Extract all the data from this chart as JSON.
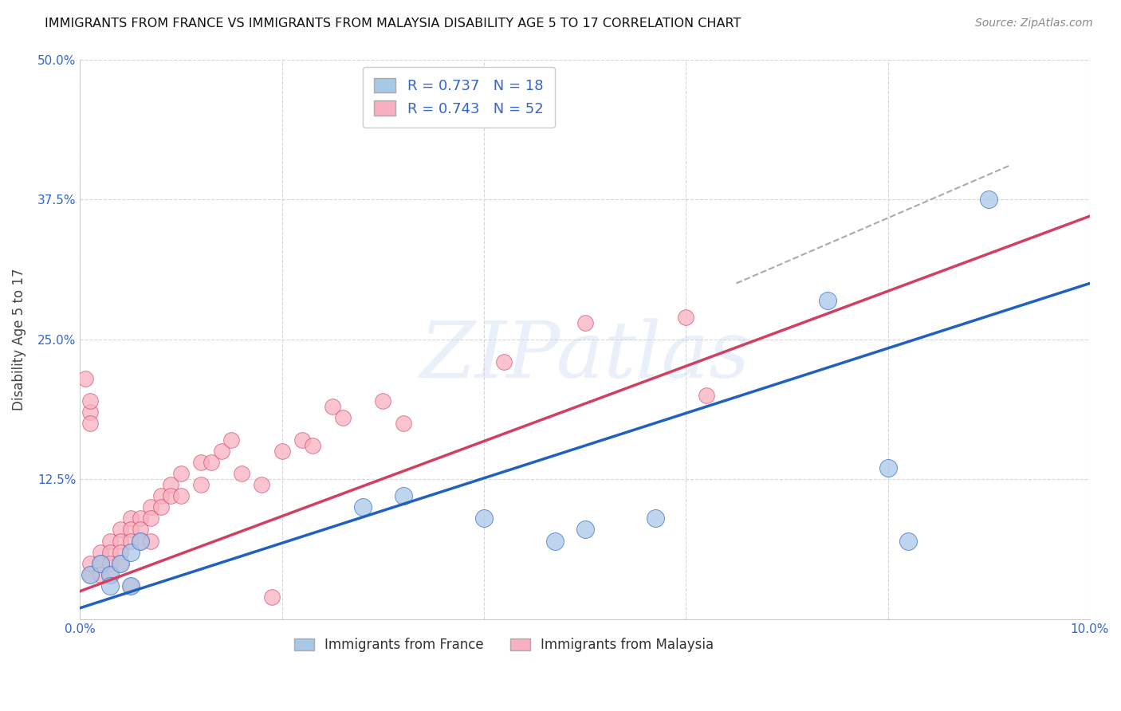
{
  "title": "IMMIGRANTS FROM FRANCE VS IMMIGRANTS FROM MALAYSIA DISABILITY AGE 5 TO 17 CORRELATION CHART",
  "source": "Source: ZipAtlas.com",
  "xlabel_bottom": "Immigrants from France",
  "xlabel_bottom2": "Immigrants from Malaysia",
  "ylabel": "Disability Age 5 to 17",
  "xlim": [
    0,
    0.1
  ],
  "ylim": [
    0,
    0.5
  ],
  "france_color": "#a8c8e8",
  "malaysia_color": "#f8b0c0",
  "france_line_color": "#2060c0",
  "malaysia_line_color": "#d04060",
  "france_R": 0.737,
  "france_N": 18,
  "malaysia_R": 0.743,
  "malaysia_N": 52,
  "france_points": [
    [
      0.001,
      0.04
    ],
    [
      0.002,
      0.05
    ],
    [
      0.003,
      0.04
    ],
    [
      0.003,
      0.03
    ],
    [
      0.004,
      0.05
    ],
    [
      0.005,
      0.06
    ],
    [
      0.005,
      0.03
    ],
    [
      0.006,
      0.07
    ],
    [
      0.028,
      0.1
    ],
    [
      0.032,
      0.11
    ],
    [
      0.04,
      0.09
    ],
    [
      0.047,
      0.07
    ],
    [
      0.05,
      0.08
    ],
    [
      0.057,
      0.09
    ],
    [
      0.08,
      0.135
    ],
    [
      0.082,
      0.07
    ],
    [
      0.09,
      0.375
    ],
    [
      0.074,
      0.285
    ]
  ],
  "malaysia_points": [
    [
      0.0005,
      0.215
    ],
    [
      0.001,
      0.04
    ],
    [
      0.001,
      0.05
    ],
    [
      0.001,
      0.185
    ],
    [
      0.002,
      0.06
    ],
    [
      0.002,
      0.05
    ],
    [
      0.002,
      0.04
    ],
    [
      0.003,
      0.07
    ],
    [
      0.003,
      0.06
    ],
    [
      0.003,
      0.05
    ],
    [
      0.003,
      0.04
    ],
    [
      0.004,
      0.08
    ],
    [
      0.004,
      0.07
    ],
    [
      0.004,
      0.06
    ],
    [
      0.004,
      0.05
    ],
    [
      0.005,
      0.09
    ],
    [
      0.005,
      0.08
    ],
    [
      0.005,
      0.07
    ],
    [
      0.005,
      0.03
    ],
    [
      0.006,
      0.09
    ],
    [
      0.006,
      0.08
    ],
    [
      0.006,
      0.07
    ],
    [
      0.007,
      0.1
    ],
    [
      0.007,
      0.09
    ],
    [
      0.007,
      0.07
    ],
    [
      0.008,
      0.11
    ],
    [
      0.008,
      0.1
    ],
    [
      0.009,
      0.12
    ],
    [
      0.009,
      0.11
    ],
    [
      0.01,
      0.13
    ],
    [
      0.01,
      0.11
    ],
    [
      0.012,
      0.14
    ],
    [
      0.012,
      0.12
    ],
    [
      0.013,
      0.14
    ],
    [
      0.014,
      0.15
    ],
    [
      0.015,
      0.16
    ],
    [
      0.016,
      0.13
    ],
    [
      0.018,
      0.12
    ],
    [
      0.019,
      0.02
    ],
    [
      0.02,
      0.15
    ],
    [
      0.022,
      0.16
    ],
    [
      0.023,
      0.155
    ],
    [
      0.025,
      0.19
    ],
    [
      0.026,
      0.18
    ],
    [
      0.03,
      0.195
    ],
    [
      0.032,
      0.175
    ],
    [
      0.042,
      0.23
    ],
    [
      0.05,
      0.265
    ],
    [
      0.06,
      0.27
    ],
    [
      0.062,
      0.2
    ],
    [
      0.001,
      0.195
    ],
    [
      0.001,
      0.175
    ]
  ],
  "france_line": [
    [
      0.0,
      0.01
    ],
    [
      0.1,
      0.3
    ]
  ],
  "malaysia_line": [
    [
      0.0,
      0.025
    ],
    [
      0.1,
      0.36
    ]
  ],
  "dashed_line_x": [
    0.065,
    0.092
  ],
  "dashed_line_y": [
    0.3,
    0.405
  ]
}
